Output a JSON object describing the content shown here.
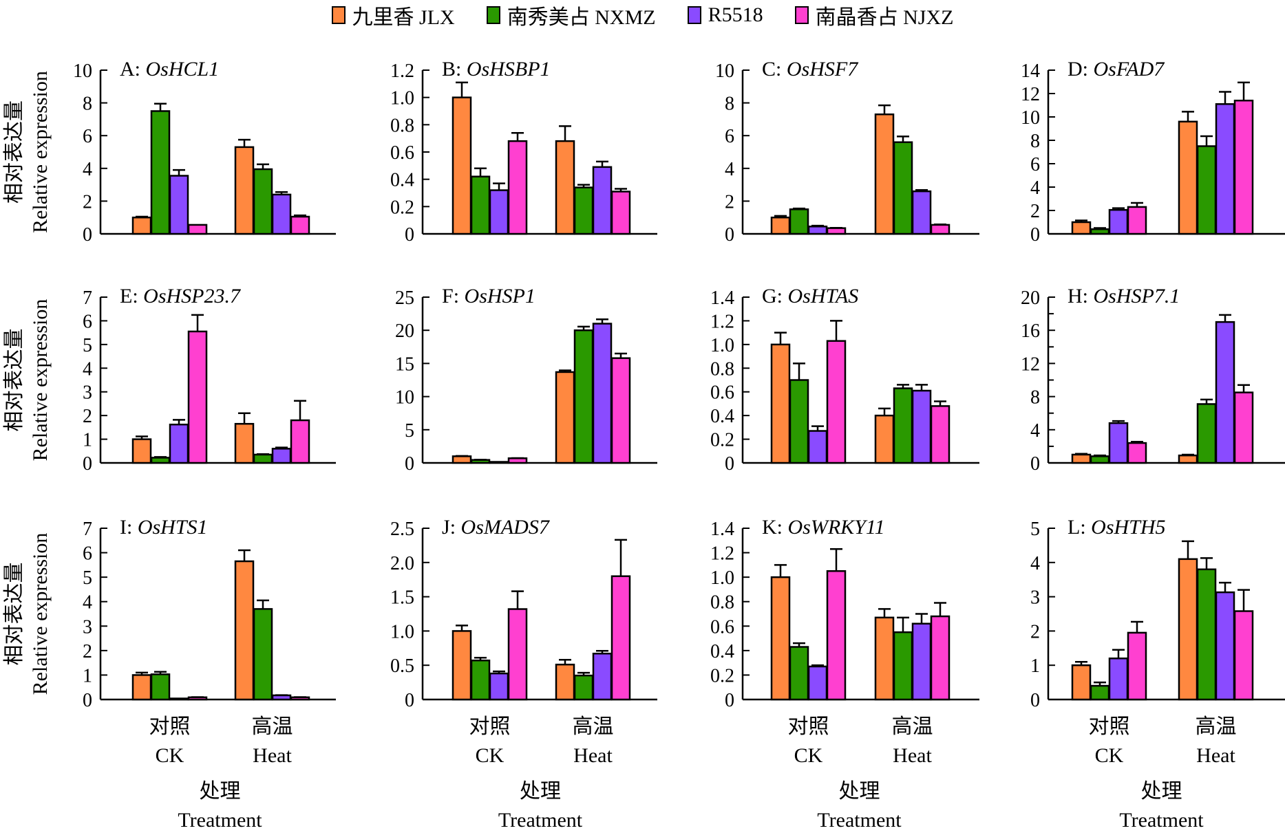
{
  "legend": [
    {
      "label": "九里香 JLX",
      "color": "#FF8840"
    },
    {
      "label": "南秀美占 NXMZ",
      "color": "#2A9900"
    },
    {
      "label": "R5518",
      "color": "#8A4BFF"
    },
    {
      "label": "南晶香占 NJXZ",
      "color": "#FF40D0"
    }
  ],
  "shared": {
    "ylabel_cn": "相对表达量",
    "ylabel_en": "Relative expression",
    "xlabel_cn": "处理",
    "xlabel_en": "Treatment",
    "categories_cn": [
      "对照",
      "高温"
    ],
    "categories_en": [
      "CK",
      "Heat"
    ]
  },
  "chart_data": [
    {
      "type": "bar",
      "panel": "A",
      "gene": "OsHCL1",
      "categories": [
        "CK",
        "Heat"
      ],
      "ylim": [
        0,
        10
      ],
      "yticks": [
        "0",
        "2",
        "4",
        "6",
        "8",
        "10"
      ],
      "series": [
        {
          "name": "九里香 JLX",
          "values": [
            1.0,
            5.3
          ],
          "errors": [
            0.05,
            0.45
          ]
        },
        {
          "name": "南秀美占 NXMZ",
          "values": [
            7.5,
            3.95
          ],
          "errors": [
            0.45,
            0.3
          ]
        },
        {
          "name": "R5518",
          "values": [
            3.55,
            2.4
          ],
          "errors": [
            0.35,
            0.15
          ]
        },
        {
          "name": "南晶香占 NJXZ",
          "values": [
            0.55,
            1.05
          ],
          "errors": [
            0.0,
            0.08
          ]
        }
      ]
    },
    {
      "type": "bar",
      "panel": "B",
      "gene": "OsHSBP1",
      "categories": [
        "CK",
        "Heat"
      ],
      "ylim": [
        0,
        1.2
      ],
      "yticks": [
        "0",
        "0.2",
        "0.4",
        "0.6",
        "0.8",
        "1.0",
        "1.2"
      ],
      "series": [
        {
          "name": "九里香 JLX",
          "values": [
            1.0,
            0.68
          ],
          "errors": [
            0.11,
            0.11
          ]
        },
        {
          "name": "南秀美占 NXMZ",
          "values": [
            0.42,
            0.34
          ],
          "errors": [
            0.06,
            0.02
          ]
        },
        {
          "name": "R5518",
          "values": [
            0.32,
            0.49
          ],
          "errors": [
            0.05,
            0.04
          ]
        },
        {
          "name": "南晶香占 NJXZ",
          "values": [
            0.68,
            0.31
          ],
          "errors": [
            0.06,
            0.02
          ]
        }
      ]
    },
    {
      "type": "bar",
      "panel": "C",
      "gene": "OsHSF7",
      "categories": [
        "CK",
        "Heat"
      ],
      "ylim": [
        0,
        10
      ],
      "yticks": [
        "0",
        "2",
        "4",
        "6",
        "8",
        "10"
      ],
      "series": [
        {
          "name": "九里香 JLX",
          "values": [
            1.0,
            7.3
          ],
          "errors": [
            0.1,
            0.55
          ]
        },
        {
          "name": "南秀美占 NXMZ",
          "values": [
            1.5,
            5.6
          ],
          "errors": [
            0.05,
            0.35
          ]
        },
        {
          "name": "R5518",
          "values": [
            0.45,
            2.6
          ],
          "errors": [
            0.05,
            0.08
          ]
        },
        {
          "name": "南晶香占 NJXZ",
          "values": [
            0.35,
            0.55
          ],
          "errors": [
            0.02,
            0.03
          ]
        }
      ]
    },
    {
      "type": "bar",
      "panel": "D",
      "gene": "OsFAD7",
      "categories": [
        "CK",
        "Heat"
      ],
      "ylim": [
        0,
        14
      ],
      "yticks": [
        "0",
        "2",
        "4",
        "6",
        "8",
        "10",
        "12",
        "14"
      ],
      "series": [
        {
          "name": "九里香 JLX",
          "values": [
            1.0,
            9.6
          ],
          "errors": [
            0.15,
            0.85
          ]
        },
        {
          "name": "南秀美占 NXMZ",
          "values": [
            0.4,
            7.5
          ],
          "errors": [
            0.1,
            0.85
          ]
        },
        {
          "name": "R5518",
          "values": [
            2.05,
            11.1
          ],
          "errors": [
            0.15,
            1.05
          ]
        },
        {
          "name": "南晶香占 NJXZ",
          "values": [
            2.3,
            11.4
          ],
          "errors": [
            0.35,
            1.55
          ]
        }
      ]
    },
    {
      "type": "bar",
      "panel": "E",
      "gene": "OsHSP23.7",
      "categories": [
        "CK",
        "Heat"
      ],
      "ylim": [
        0,
        7
      ],
      "yticks": [
        "0",
        "1",
        "2",
        "3",
        "4",
        "5",
        "6",
        "7"
      ],
      "series": [
        {
          "name": "九里香 JLX",
          "values": [
            1.0,
            1.65
          ],
          "errors": [
            0.12,
            0.45
          ]
        },
        {
          "name": "南秀美占 NXMZ",
          "values": [
            0.22,
            0.35
          ],
          "errors": [
            0.03,
            0.02
          ]
        },
        {
          "name": "R5518",
          "values": [
            1.62,
            0.6
          ],
          "errors": [
            0.2,
            0.05
          ]
        },
        {
          "name": "南晶香占 NJXZ",
          "values": [
            5.55,
            1.8
          ],
          "errors": [
            0.7,
            0.82
          ]
        }
      ]
    },
    {
      "type": "bar",
      "panel": "F",
      "gene": "OsHSP1",
      "categories": [
        "CK",
        "Heat"
      ],
      "ylim": [
        0,
        25
      ],
      "yticks": [
        "0",
        "5",
        "10",
        "15",
        "20",
        "25"
      ],
      "series": [
        {
          "name": "九里香 JLX",
          "values": [
            1.0,
            13.7
          ],
          "errors": [
            0.05,
            0.25
          ]
        },
        {
          "name": "南秀美占 NXMZ",
          "values": [
            0.45,
            20.0
          ],
          "errors": [
            0.03,
            0.55
          ]
        },
        {
          "name": "R5518",
          "values": [
            0.05,
            21.0
          ],
          "errors": [
            0.0,
            0.65
          ]
        },
        {
          "name": "南晶香占 NJXZ",
          "values": [
            0.7,
            15.8
          ],
          "errors": [
            0.03,
            0.7
          ]
        }
      ]
    },
    {
      "type": "bar",
      "panel": "G",
      "gene": "OsHTAS",
      "categories": [
        "CK",
        "Heat"
      ],
      "ylim": [
        0,
        1.4
      ],
      "yticks": [
        "0",
        "0.2",
        "0.4",
        "0.6",
        "0.8",
        "1.0",
        "1.2",
        "1.4"
      ],
      "series": [
        {
          "name": "九里香 JLX",
          "values": [
            1.0,
            0.4
          ],
          "errors": [
            0.1,
            0.06
          ]
        },
        {
          "name": "南秀美占 NXMZ",
          "values": [
            0.7,
            0.63
          ],
          "errors": [
            0.14,
            0.03
          ]
        },
        {
          "name": "R5518",
          "values": [
            0.27,
            0.61
          ],
          "errors": [
            0.04,
            0.05
          ]
        },
        {
          "name": "南晶香占 NJXZ",
          "values": [
            1.03,
            0.48
          ],
          "errors": [
            0.17,
            0.04
          ]
        }
      ]
    },
    {
      "type": "bar",
      "panel": "H",
      "gene": "OsHSP7.1",
      "categories": [
        "CK",
        "Heat"
      ],
      "ylim": [
        0,
        20
      ],
      "yticks": [
        "0",
        "4",
        "8",
        "12",
        "16",
        "20"
      ],
      "series": [
        {
          "name": "九里香 JLX",
          "values": [
            1.0,
            0.9
          ],
          "errors": [
            0.1,
            0.1
          ]
        },
        {
          "name": "南秀美占 NXMZ",
          "values": [
            0.8,
            7.1
          ],
          "errors": [
            0.1,
            0.55
          ]
        },
        {
          "name": "R5518",
          "values": [
            4.8,
            17.0
          ],
          "errors": [
            0.25,
            0.85
          ]
        },
        {
          "name": "南晶香占 NJXZ",
          "values": [
            2.4,
            8.5
          ],
          "errors": [
            0.15,
            0.9
          ]
        }
      ]
    },
    {
      "type": "bar",
      "panel": "I",
      "gene": "OsHTS1",
      "categories": [
        "CK",
        "Heat"
      ],
      "ylim": [
        0,
        7
      ],
      "yticks": [
        "0",
        "1",
        "2",
        "3",
        "4",
        "5",
        "6",
        "7"
      ],
      "series": [
        {
          "name": "九里香 JLX",
          "values": [
            1.0,
            5.65
          ],
          "errors": [
            0.1,
            0.45
          ]
        },
        {
          "name": "南秀美占 NXMZ",
          "values": [
            1.03,
            3.7
          ],
          "errors": [
            0.1,
            0.35
          ]
        },
        {
          "name": "R5518",
          "values": [
            0.03,
            0.17
          ],
          "errors": [
            0.0,
            0.01
          ]
        },
        {
          "name": "南晶香占 NJXZ",
          "values": [
            0.09,
            0.09
          ],
          "errors": [
            0.01,
            0.01
          ]
        }
      ]
    },
    {
      "type": "bar",
      "panel": "J",
      "gene": "OsMADS7",
      "categories": [
        "CK",
        "Heat"
      ],
      "ylim": [
        0,
        2.5
      ],
      "yticks": [
        "0",
        "0.5",
        "1.0",
        "1.5",
        "2.0",
        "2.5"
      ],
      "series": [
        {
          "name": "九里香 JLX",
          "values": [
            1.0,
            0.51
          ],
          "errors": [
            0.08,
            0.07
          ]
        },
        {
          "name": "南秀美占 NXMZ",
          "values": [
            0.57,
            0.35
          ],
          "errors": [
            0.04,
            0.04
          ]
        },
        {
          "name": "R5518",
          "values": [
            0.38,
            0.67
          ],
          "errors": [
            0.03,
            0.04
          ]
        },
        {
          "name": "南晶香占 NJXZ",
          "values": [
            1.32,
            1.8
          ],
          "errors": [
            0.26,
            0.53
          ]
        }
      ]
    },
    {
      "type": "bar",
      "panel": "K",
      "gene": "OsWRKY11",
      "categories": [
        "CK",
        "Heat"
      ],
      "ylim": [
        0,
        1.4
      ],
      "yticks": [
        "0",
        "0.2",
        "0.4",
        "0.6",
        "0.8",
        "1.0",
        "1.2",
        "1.4"
      ],
      "series": [
        {
          "name": "九里香 JLX",
          "values": [
            1.0,
            0.67
          ],
          "errors": [
            0.1,
            0.07
          ]
        },
        {
          "name": "南秀美占 NXMZ",
          "values": [
            0.43,
            0.55
          ],
          "errors": [
            0.03,
            0.12
          ]
        },
        {
          "name": "R5518",
          "values": [
            0.27,
            0.62
          ],
          "errors": [
            0.01,
            0.08
          ]
        },
        {
          "name": "南晶香占 NJXZ",
          "values": [
            1.05,
            0.68
          ],
          "errors": [
            0.18,
            0.11
          ]
        }
      ]
    },
    {
      "type": "bar",
      "panel": "L",
      "gene": "OsHTH5",
      "categories": [
        "CK",
        "Heat"
      ],
      "ylim": [
        0,
        5
      ],
      "yticks": [
        "0",
        "1",
        "2",
        "3",
        "4",
        "5"
      ],
      "series": [
        {
          "name": "九里香 JLX",
          "values": [
            1.0,
            4.1
          ],
          "errors": [
            0.1,
            0.52
          ]
        },
        {
          "name": "南秀美占 NXMZ",
          "values": [
            0.4,
            3.8
          ],
          "errors": [
            0.1,
            0.33
          ]
        },
        {
          "name": "R5518",
          "values": [
            1.2,
            3.13
          ],
          "errors": [
            0.25,
            0.28
          ]
        },
        {
          "name": "南晶香占 NJXZ",
          "values": [
            1.95,
            2.58
          ],
          "errors": [
            0.32,
            0.62
          ]
        }
      ]
    }
  ]
}
